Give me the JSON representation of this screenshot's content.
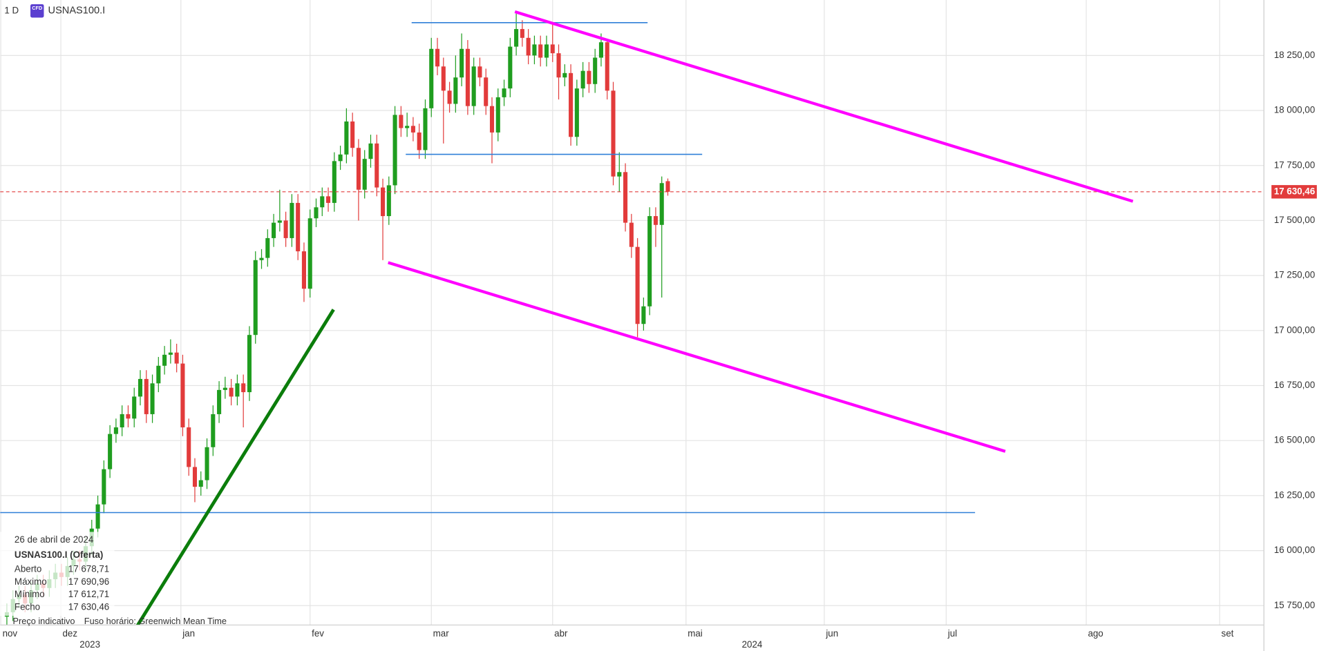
{
  "chart_data": {
    "type": "candlestick",
    "interval": "1 D",
    "badge": "CFD",
    "symbol": "USNAS100.I",
    "candles": {
      "open": [
        15700,
        15720,
        15780,
        15800,
        15760,
        15820,
        15850,
        15830,
        15870,
        15900,
        15880,
        15930,
        15960,
        15950,
        16020,
        16100,
        16210,
        16370,
        16530,
        16560,
        16620,
        16600,
        16700,
        16780,
        16620,
        16760,
        16840,
        16890,
        16900,
        16850,
        16560,
        16380,
        16290,
        16320,
        16470,
        16620,
        16730,
        16740,
        16700,
        16760,
        16720,
        16980,
        17320,
        17330,
        17420,
        17490,
        17500,
        17420,
        17580,
        17360,
        17190,
        17510,
        17560,
        17610,
        17580,
        17770,
        17800,
        17950,
        17830,
        17640,
        17780,
        17850,
        17650,
        17520,
        17660,
        17980,
        17920,
        17930,
        17900,
        17820,
        18010,
        18280,
        18200,
        18090,
        18030,
        18150,
        18280,
        18020,
        18200,
        18150,
        18020,
        17900,
        18060,
        18100,
        18290,
        18370,
        18330,
        18250,
        18300,
        18240,
        18300,
        18260,
        18150,
        18170,
        17880,
        18100,
        18180,
        18120,
        18240,
        18310,
        18090,
        17700,
        17720,
        17490,
        17380,
        17030,
        17110,
        17520,
        17480,
        17678.71
      ],
      "high": [
        15760,
        15820,
        15840,
        15840,
        15860,
        15890,
        15890,
        15910,
        15940,
        15940,
        15970,
        16000,
        16000,
        16060,
        16140,
        16250,
        16410,
        16570,
        16600,
        16660,
        16660,
        16740,
        16820,
        16820,
        16800,
        16880,
        16930,
        16960,
        16940,
        16890,
        16600,
        16420,
        16360,
        16510,
        16660,
        16770,
        16790,
        16780,
        16800,
        16800,
        17020,
        17360,
        17370,
        17460,
        17530,
        17640,
        17540,
        17620,
        17620,
        17400,
        17550,
        17600,
        17650,
        17650,
        17810,
        17840,
        18010,
        17990,
        17870,
        17820,
        17890,
        17890,
        17690,
        17700,
        18020,
        18020,
        17990,
        17970,
        17940,
        18050,
        18330,
        18330,
        18240,
        18130,
        18250,
        18350,
        18320,
        18240,
        18240,
        18190,
        18060,
        18100,
        18140,
        18330,
        18440,
        18410,
        18370,
        18340,
        18340,
        18340,
        18400,
        18300,
        18210,
        18210,
        18140,
        18220,
        18220,
        18280,
        18350,
        18320,
        18130,
        17810,
        17760,
        17530,
        17420,
        17150,
        17560,
        17560,
        17700,
        17690.96
      ],
      "low": [
        15660,
        15680,
        15740,
        15720,
        15720,
        15780,
        15790,
        15790,
        15830,
        15840,
        15840,
        15890,
        15910,
        15910,
        15980,
        16060,
        16170,
        16330,
        16490,
        16520,
        16560,
        16560,
        16660,
        16580,
        16580,
        16720,
        16800,
        16850,
        16810,
        16520,
        16340,
        16220,
        16250,
        16280,
        16430,
        16580,
        16690,
        16660,
        16660,
        16560,
        16680,
        16940,
        17280,
        17290,
        17380,
        17450,
        17380,
        17380,
        17320,
        17130,
        17150,
        17470,
        17520,
        17540,
        17540,
        17730,
        17760,
        17790,
        17500,
        17600,
        17740,
        17610,
        17320,
        17480,
        17620,
        17880,
        17880,
        17860,
        17780,
        17780,
        17970,
        18160,
        17850,
        17990,
        17990,
        18110,
        17980,
        17980,
        18110,
        17980,
        17760,
        17860,
        18020,
        18060,
        18250,
        18290,
        18210,
        18210,
        18200,
        18200,
        18220,
        18050,
        18110,
        17840,
        17840,
        18060,
        18080,
        18080,
        18200,
        18050,
        17660,
        17630,
        17450,
        17330,
        16970,
        17000,
        17070,
        17380,
        17150,
        17612.71
      ],
      "close": [
        15720,
        15780,
        15800,
        15760,
        15820,
        15850,
        15830,
        15870,
        15900,
        15880,
        15930,
        15960,
        15950,
        16020,
        16100,
        16210,
        16370,
        16530,
        16560,
        16620,
        16600,
        16700,
        16780,
        16620,
        16760,
        16840,
        16890,
        16900,
        16850,
        16560,
        16380,
        16290,
        16320,
        16470,
        16620,
        16730,
        16740,
        16700,
        16760,
        16720,
        16980,
        17320,
        17330,
        17420,
        17490,
        17500,
        17420,
        17580,
        17360,
        17190,
        17510,
        17560,
        17610,
        17580,
        17770,
        17800,
        17950,
        17830,
        17640,
        17780,
        17850,
        17650,
        17520,
        17660,
        17980,
        17920,
        17930,
        17900,
        17820,
        18010,
        18280,
        18200,
        18090,
        18030,
        18150,
        18280,
        18020,
        18200,
        18150,
        18020,
        17900,
        18060,
        18100,
        18290,
        18370,
        18330,
        18250,
        18300,
        18240,
        18300,
        18260,
        18150,
        18170,
        17880,
        18100,
        18180,
        18120,
        18240,
        18310,
        18090,
        17700,
        17720,
        17490,
        17380,
        17030,
        17110,
        17520,
        17480,
        17670,
        17630.46
      ]
    },
    "up_color": "#1f9d1f",
    "down_color": "#e23b3b",
    "xlim": [
      -1.1,
      207.3
    ],
    "xticks": [
      {
        "value": -1,
        "label": "nov"
      },
      {
        "value": 8.9,
        "label": "dez"
      },
      {
        "value": 28.7,
        "label": "jan"
      },
      {
        "value": 50,
        "label": "fev"
      },
      {
        "value": 70,
        "label": "mar"
      },
      {
        "value": 90,
        "label": "abr"
      },
      {
        "value": 112,
        "label": "mai"
      },
      {
        "value": 134.8,
        "label": "jun"
      },
      {
        "value": 154.9,
        "label": "jul"
      },
      {
        "value": 178,
        "label": "ago"
      },
      {
        "value": 200,
        "label": "set"
      }
    ],
    "year_labels": [
      {
        "value": 13.7,
        "label": "2023"
      },
      {
        "value": 122.9,
        "label": "2024"
      }
    ],
    "ylim": [
      15662,
      18502
    ],
    "yticks": [
      {
        "value": 15750,
        "label": "15 750,00"
      },
      {
        "value": 16000,
        "label": "16 000,00"
      },
      {
        "value": 16250,
        "label": "16 250,00"
      },
      {
        "value": 16500,
        "label": "16 500,00"
      },
      {
        "value": 16750,
        "label": "16 750,00"
      },
      {
        "value": 17000,
        "label": "17 000,00"
      },
      {
        "value": 17250,
        "label": "17 250,00"
      },
      {
        "value": 17500,
        "label": "17 500,00"
      },
      {
        "value": 17750,
        "label": "17 750,00"
      },
      {
        "value": 18000,
        "label": "18 000,00"
      },
      {
        "value": 18250,
        "label": "18 250,00"
      }
    ],
    "grid": true,
    "last_price": {
      "value": 17630.46,
      "label": "17 630,46",
      "color": "#e23b3b"
    },
    "info": {
      "date": "26 de abril de 2024",
      "title": "USNAS100.I (Oferta)",
      "rows": [
        {
          "label": "Aberto",
          "value": "17 678,71"
        },
        {
          "label": "Máximo",
          "value": "17 690,96"
        },
        {
          "label": "Mínimo",
          "value": "17 612,71"
        },
        {
          "label": "Fecho",
          "value": "17 630,46"
        }
      ]
    },
    "footer": {
      "note": "Preço indicativo",
      "timezone": "Fuso horário: Greenwich Mean Time"
    }
  }
}
